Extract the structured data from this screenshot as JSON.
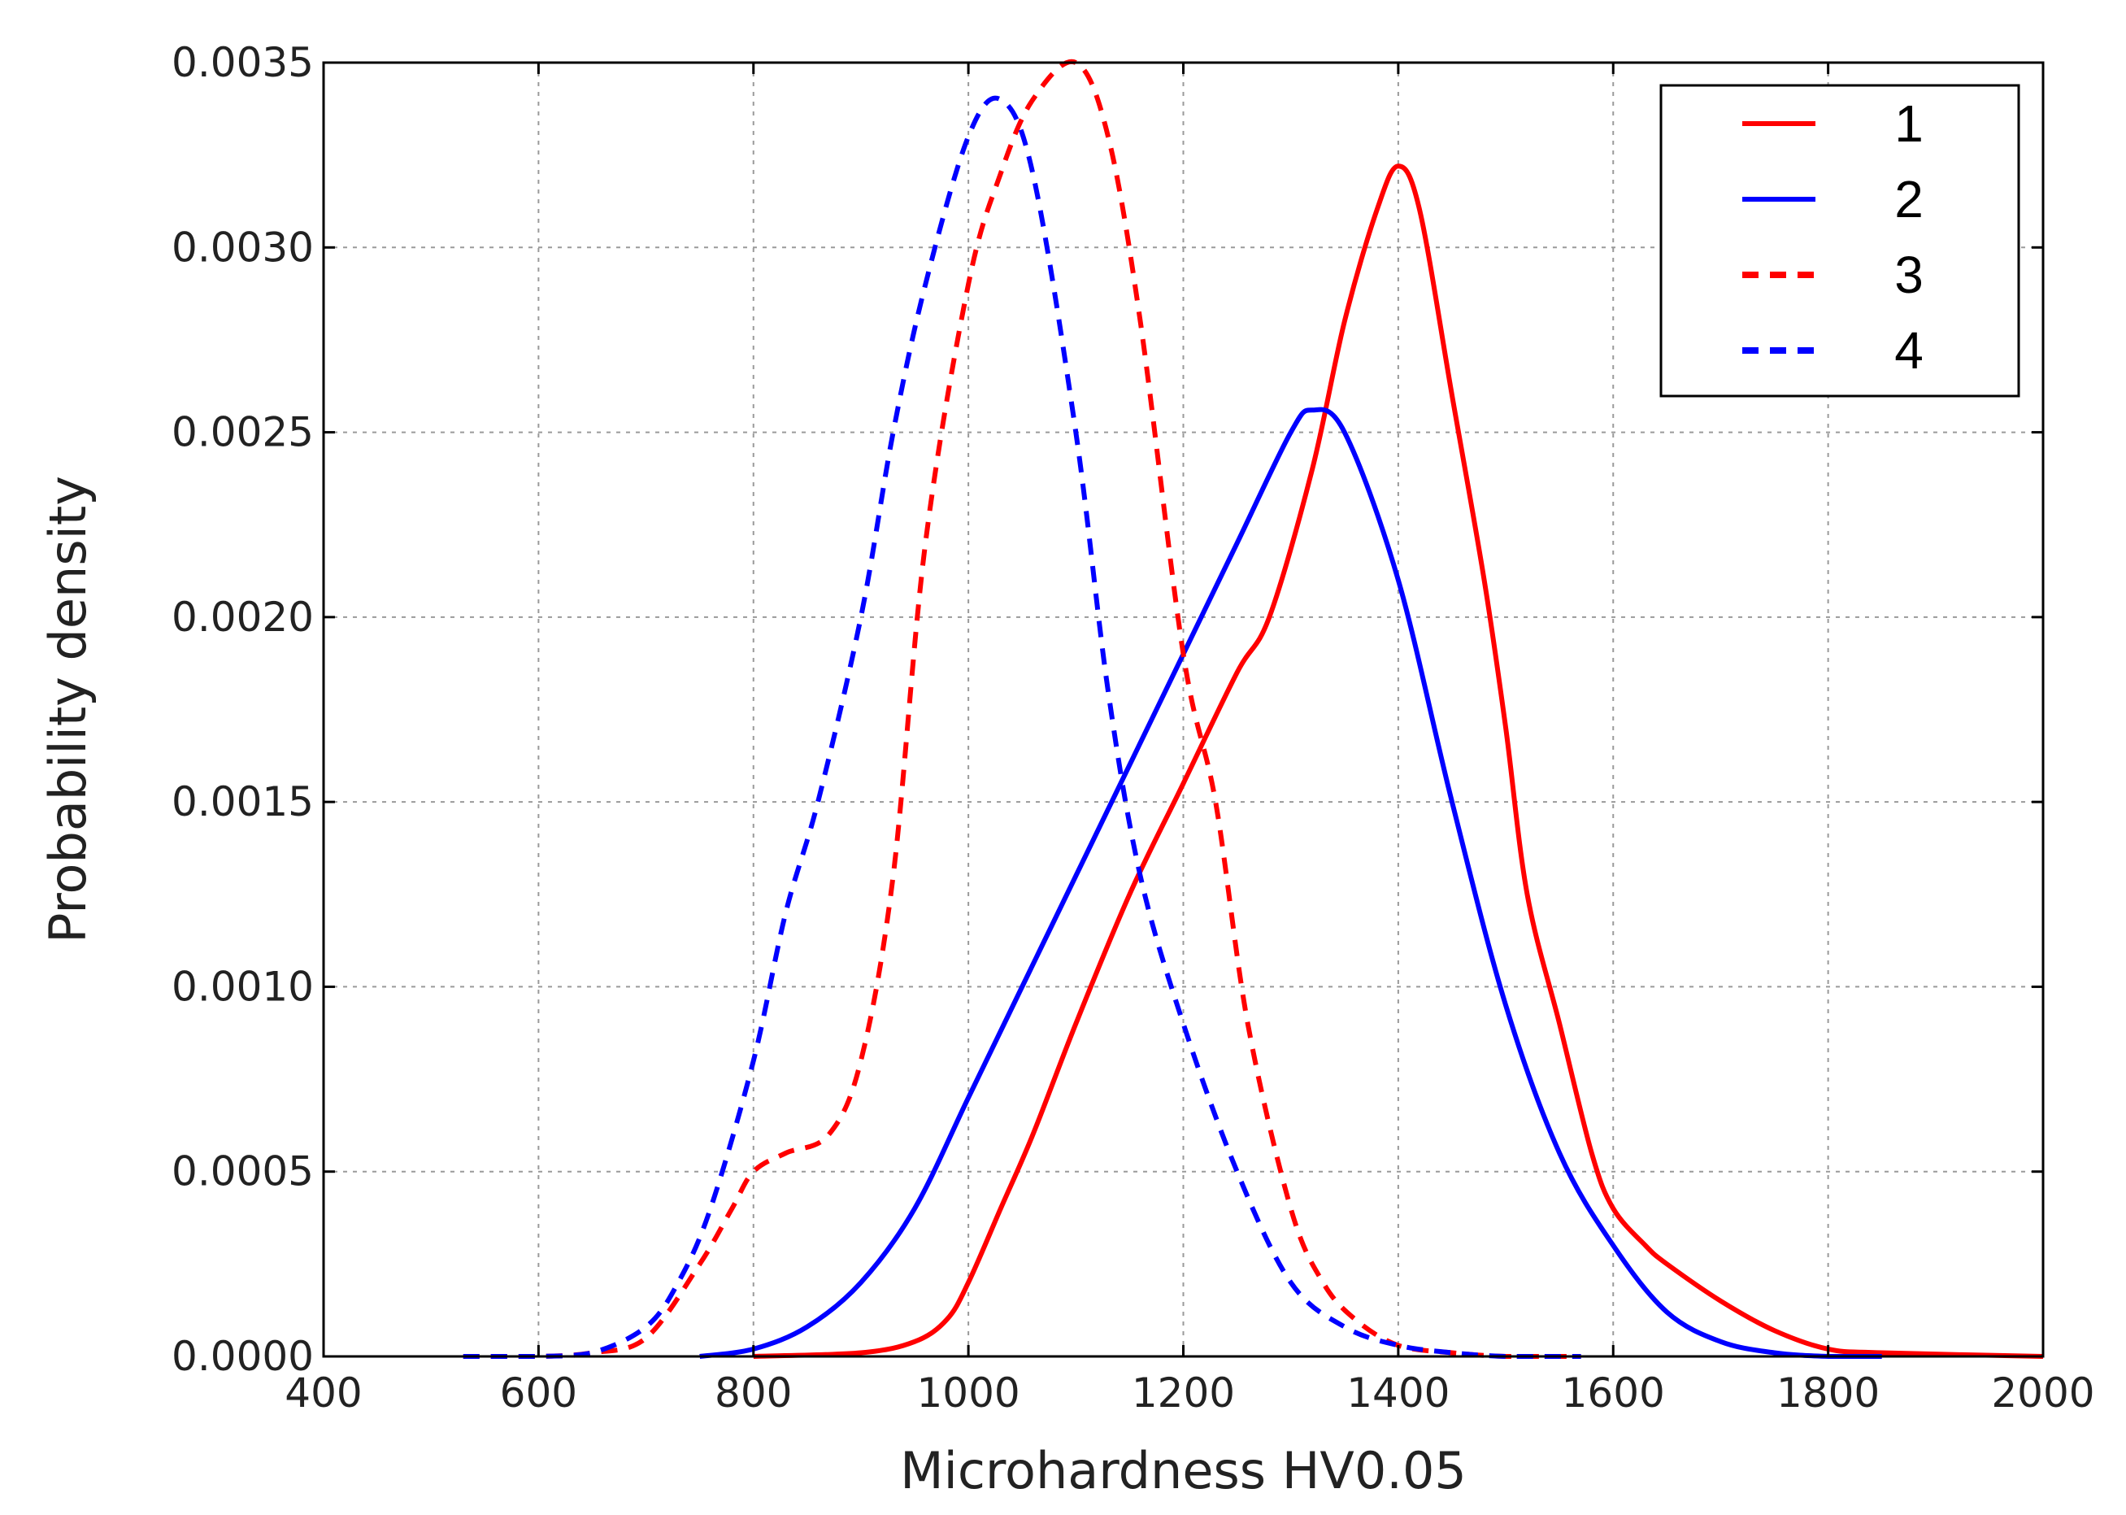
{
  "chart_data": {
    "type": "line",
    "title": "",
    "xlabel": "Microhardness HV0.05",
    "ylabel": "Probability density",
    "xlim": [
      400,
      2000
    ],
    "ylim": [
      0,
      0.0035
    ],
    "grid": true,
    "legend_position": "top-right",
    "x_ticks": [
      "400",
      "600",
      "800",
      "1000",
      "1200",
      "1400",
      "1600",
      "1800",
      "2000"
    ],
    "y_ticks": [
      "0.0000",
      "0.0005",
      "0.0010",
      "0.0015",
      "0.0020",
      "0.0025",
      "0.0030",
      "0.0035"
    ],
    "x_tick_values": [
      400,
      600,
      800,
      1000,
      1200,
      1400,
      1600,
      1800,
      2000
    ],
    "y_tick_values": [
      0,
      0.0005,
      0.001,
      0.0015,
      0.002,
      0.0025,
      0.003,
      0.0035
    ],
    "series": [
      {
        "name": "1",
        "color": "#ff0000",
        "style": "solid",
        "x": [
          800,
          900,
          950,
          980,
          1000,
          1030,
          1060,
          1100,
          1150,
          1200,
          1250,
          1280,
          1320,
          1350,
          1380,
          1400,
          1420,
          1450,
          1480,
          1500,
          1520,
          1550,
          1580,
          1600,
          1630,
          1650,
          1700,
          1750,
          1800,
          1850,
          2000
        ],
        "y": [
          0,
          1e-05,
          4e-05,
          0.0001,
          0.0002,
          0.0004,
          0.0006,
          0.0009,
          0.00125,
          0.00155,
          0.00185,
          0.002,
          0.0024,
          0.0028,
          0.0031,
          0.00322,
          0.0031,
          0.0026,
          0.0021,
          0.0017,
          0.00125,
          0.0009,
          0.00055,
          0.0004,
          0.0003,
          0.00025,
          0.00015,
          7e-05,
          2e-05,
          1e-05,
          0
        ]
      },
      {
        "name": "2",
        "color": "#0000ff",
        "style": "solid",
        "x": [
          750,
          800,
          850,
          900,
          950,
          1000,
          1050,
          1100,
          1150,
          1200,
          1250,
          1300,
          1320,
          1350,
          1400,
          1450,
          1500,
          1550,
          1600,
          1650,
          1700,
          1750,
          1800,
          1850
        ],
        "y": [
          0,
          2e-05,
          8e-05,
          0.0002,
          0.0004,
          0.0007,
          0.001,
          0.0013,
          0.0016,
          0.0019,
          0.0022,
          0.0025,
          0.00256,
          0.0025,
          0.0021,
          0.0015,
          0.00095,
          0.00055,
          0.0003,
          0.00012,
          4e-05,
          1e-05,
          0,
          0
        ]
      },
      {
        "name": "3",
        "color": "#ff0000",
        "style": "dashed",
        "x": [
          530,
          600,
          650,
          700,
          750,
          780,
          800,
          830,
          870,
          900,
          930,
          960,
          1000,
          1030,
          1060,
          1100,
          1130,
          1160,
          1200,
          1230,
          1260,
          1300,
          1330,
          1360,
          1400,
          1450,
          1500,
          1570
        ],
        "y": [
          0,
          0,
          1e-05,
          5e-05,
          0.00025,
          0.0004,
          0.0005,
          0.00055,
          0.0006,
          0.0008,
          0.0013,
          0.0022,
          0.0029,
          0.0032,
          0.0034,
          0.0035,
          0.0033,
          0.0028,
          0.0019,
          0.0015,
          0.0009,
          0.0004,
          0.0002,
          0.0001,
          3e-05,
          1e-05,
          0,
          0
        ]
      },
      {
        "name": "4",
        "color": "#0000ff",
        "style": "dashed",
        "x": [
          530,
          600,
          650,
          700,
          730,
          760,
          800,
          830,
          860,
          900,
          930,
          960,
          1000,
          1030,
          1060,
          1100,
          1130,
          1160,
          1200,
          1250,
          1300,
          1350,
          1400,
          1450,
          1500,
          1570
        ],
        "y": [
          0,
          0,
          1e-05,
          8e-05,
          0.0002,
          0.0004,
          0.0008,
          0.0012,
          0.0015,
          0.002,
          0.0025,
          0.0029,
          0.0033,
          0.0034,
          0.0032,
          0.0025,
          0.0018,
          0.0013,
          0.0009,
          0.0005,
          0.0002,
          8e-05,
          3e-05,
          1e-05,
          0,
          0
        ]
      }
    ],
    "legend": {
      "items": [
        {
          "label": "1",
          "color": "#ff0000",
          "style": "solid"
        },
        {
          "label": "2",
          "color": "#0000ff",
          "style": "solid"
        },
        {
          "label": "3",
          "color": "#ff0000",
          "style": "dashed"
        },
        {
          "label": "4",
          "color": "#0000ff",
          "style": "dashed"
        }
      ]
    }
  }
}
